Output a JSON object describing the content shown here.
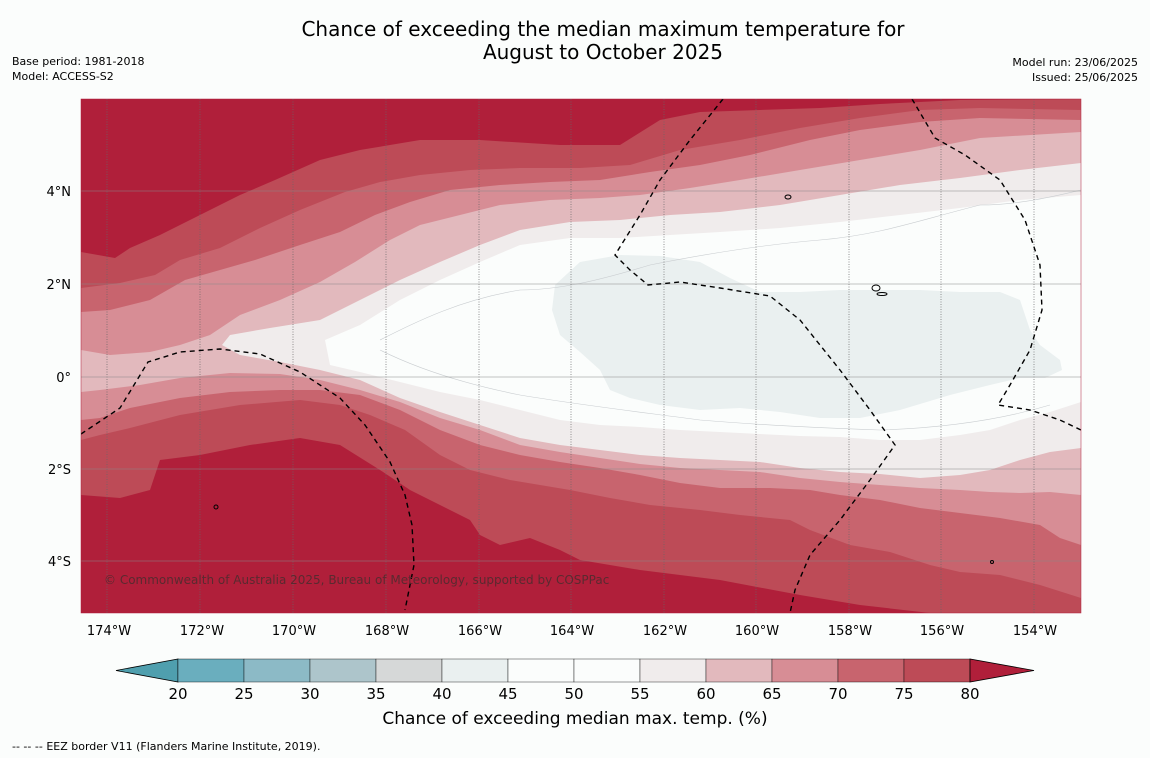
{
  "header": {
    "title_line1": "Chance of exceeding the median maximum temperature for",
    "title_line2": "August to October 2025",
    "base_period": "Base period: 1981-2018",
    "model": "Model: ACCESS-S2",
    "model_run": "Model run: 23/06/2025",
    "issued": "Issued: 25/06/2025"
  },
  "map": {
    "longitude_labels": [
      "174°W",
      "172°W",
      "170°W",
      "168°W",
      "166°W",
      "164°W",
      "162°W",
      "160°W",
      "158°W",
      "156°W",
      "154°W"
    ],
    "latitude_labels": [
      "4°N",
      "2°N",
      "0°",
      "2°S",
      "4°S"
    ],
    "copyright": "© Commonwealth of Australia 2025, Bureau of Meteorology, supported by COSPPac"
  },
  "colorbar": {
    "ticks": [
      "20",
      "25",
      "30",
      "35",
      "40",
      "45",
      "50",
      "55",
      "60",
      "65",
      "70",
      "75",
      "80"
    ],
    "label": "Chance of exceeding median max. temp. (%)",
    "colors": [
      "#4f9fae",
      "#6aaebe",
      "#8cbac6",
      "#adc5cb",
      "#d6d8d8",
      "#eaf0f0",
      "#fbfdfc",
      "#fbfdfc",
      "#f0ecec",
      "#e2b9bd",
      "#d78d95",
      "#c8646e",
      "#bd4b57",
      "#b01f3a"
    ]
  },
  "footer": {
    "legend_symbol": "-- -- --",
    "legend_text": "EEZ border V11 (Flanders Marine Institute, 2019)."
  }
}
